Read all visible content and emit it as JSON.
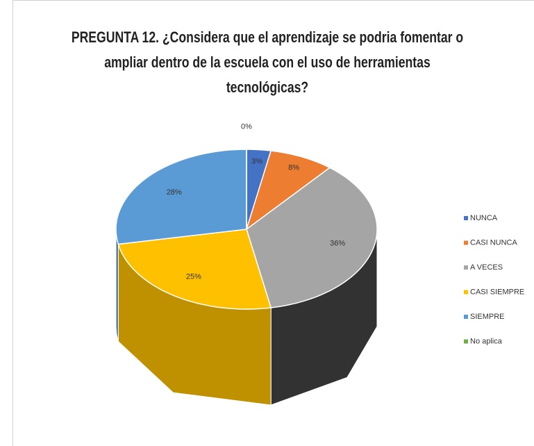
{
  "chart_data": {
    "type": "pie3d",
    "title": "PREGUNTA 12. ¿Considera que el aprendizaje se podria fomentar o ampliar dentro de la escuela con el uso de herramientas tecnológicas?",
    "categories": [
      "NUNCA",
      "CASI NUNCA",
      "A VECES",
      "CASI SIEMPRE",
      "SIEMPRE",
      "No aplica"
    ],
    "values": [
      3,
      8,
      36,
      25,
      28,
      0
    ],
    "value_labels": [
      "3%",
      "8%",
      "36%",
      "25%",
      "28%",
      "0%"
    ],
    "colors": [
      "#4472c4",
      "#ed7d31",
      "#a5a5a5",
      "#ffc000",
      "#5b9bd5",
      "#70ad47"
    ],
    "legend": "right"
  }
}
